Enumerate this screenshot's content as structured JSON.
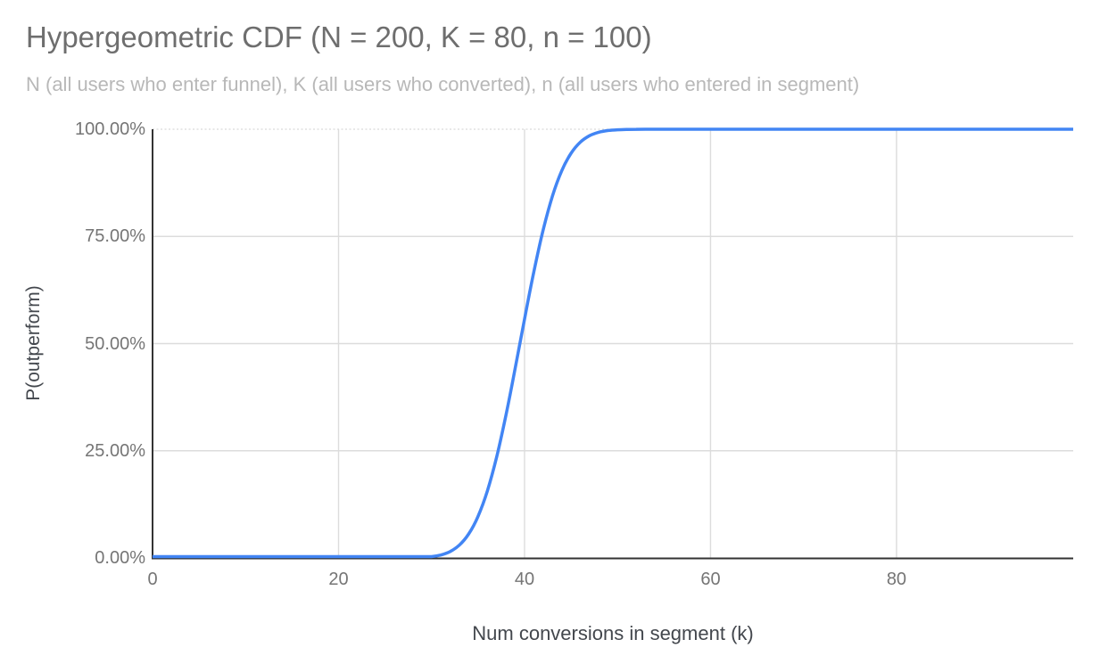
{
  "chart_data": {
    "type": "line",
    "title": "Hypergeometric CDF (N = 200, K = 80, n = 100)",
    "subtitle": "N (all users who enter funnel), K (all users who converted), n (all users who entered in segment)",
    "xlabel": "Num conversions in segment (k)",
    "ylabel": "P(outperform)",
    "xlim": [
      0,
      99
    ],
    "ylim": [
      0,
      1
    ],
    "grid": true,
    "legend_position": "none",
    "line_style": "smooth, no markers",
    "x_axis_ticks": [
      {
        "value": 0,
        "label": "0"
      },
      {
        "value": 20,
        "label": "20"
      },
      {
        "value": 40,
        "label": "40"
      },
      {
        "value": 60,
        "label": "60"
      },
      {
        "value": 80,
        "label": "80"
      }
    ],
    "y_axis_ticks": [
      {
        "value": 0.0,
        "label": "0.00%"
      },
      {
        "value": 0.25,
        "label": "25.00%"
      },
      {
        "value": 0.5,
        "label": "50.00%"
      },
      {
        "value": 0.75,
        "label": "75.00%"
      },
      {
        "value": 1.0,
        "label": "100.00%"
      }
    ],
    "series": [
      {
        "name": "P(outperform)",
        "x": [
          0,
          1,
          2,
          3,
          4,
          5,
          6,
          7,
          8,
          9,
          10,
          11,
          12,
          13,
          14,
          15,
          16,
          17,
          18,
          19,
          20,
          21,
          22,
          23,
          24,
          25,
          26,
          27,
          28,
          29,
          30,
          31,
          32,
          33,
          34,
          35,
          36,
          37,
          38,
          39,
          40,
          41,
          42,
          43,
          44,
          45,
          46,
          47,
          48,
          49,
          50,
          51,
          52,
          53,
          54,
          55,
          56,
          57,
          58,
          59,
          60,
          61,
          62,
          63,
          64,
          65,
          66,
          67,
          68,
          69,
          70,
          71,
          72,
          73,
          74,
          75,
          76,
          77,
          78,
          79,
          80,
          81,
          82,
          83,
          84,
          85,
          86,
          87,
          88,
          89,
          90,
          91,
          92,
          93,
          94,
          95,
          96,
          97,
          98,
          99
        ],
        "y": [
          0,
          0,
          0,
          0,
          0,
          0,
          0,
          0,
          0,
          0,
          0,
          0,
          0,
          0,
          0,
          0,
          0,
          0,
          0,
          0,
          0,
          0,
          0,
          0,
          2e-06,
          1.1e-05,
          4.2e-05,
          0.000141,
          0.000423,
          0.001169,
          0.002968,
          0.00695,
          0.015042,
          0.030142,
          0.056042,
          0.096891,
          0.156159,
          0.235296,
          0.332566,
          0.442645,
          0.557355,
          0.667434,
          0.764704,
          0.843841,
          0.903109,
          0.943958,
          0.969858,
          0.984958,
          0.99305,
          0.997032,
          0.998831,
          0.999577,
          0.999859,
          0.999958,
          0.999989,
          0.999998,
          1,
          1,
          1,
          1,
          1,
          1,
          1,
          1,
          1,
          1,
          1,
          1,
          1,
          1,
          1,
          1,
          1,
          1,
          1,
          1,
          1,
          1,
          1,
          1,
          1,
          1,
          1,
          1,
          1,
          1,
          1,
          1,
          1,
          1,
          1,
          1,
          1,
          1,
          1,
          1,
          1,
          1,
          1,
          1
        ]
      }
    ],
    "colors": {
      "line": "#4285f4",
      "title_text": "#6e6e6e",
      "subtitle_text": "#b8b8b8",
      "tick_text": "#757575",
      "axis_title_text": "#43474d",
      "gridline": "#dcdcdc",
      "top_gridline_dotted": "#d9d9d9",
      "axis_line": "#333333",
      "background": "#ffffff"
    }
  }
}
